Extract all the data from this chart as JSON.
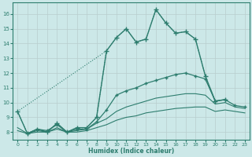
{
  "bg_color": "#cce8e8",
  "grid_color": "#c8dada",
  "line_color": "#2d7d6e",
  "xlabel": "Humidex (Indice chaleur)",
  "xlim": [
    -0.5,
    23.5
  ],
  "ylim": [
    7.5,
    16.8
  ],
  "yticks": [
    8,
    9,
    10,
    11,
    12,
    13,
    14,
    15,
    16
  ],
  "xticks": [
    0,
    1,
    2,
    3,
    4,
    5,
    6,
    7,
    8,
    9,
    10,
    11,
    12,
    13,
    14,
    15,
    16,
    17,
    18,
    19,
    20,
    21,
    22,
    23
  ],
  "lines": [
    {
      "x": [
        0,
        1,
        2,
        3,
        4,
        5,
        6,
        7,
        8,
        9,
        10,
        11,
        12,
        13,
        14,
        15,
        16,
        17,
        18,
        19,
        20,
        21
      ],
      "y": [
        9.4,
        7.9,
        8.2,
        8.0,
        8.6,
        8.0,
        8.3,
        8.3,
        9.0,
        13.5,
        14.4,
        15.0,
        14.1,
        14.3,
        16.3,
        15.4,
        14.7,
        14.8,
        14.3,
        11.8,
        10.1,
        10.2
      ],
      "style": "-",
      "marker": "+",
      "markersize": 4,
      "linewidth": 1.0
    },
    {
      "x": [
        0,
        1,
        2,
        3,
        4,
        5,
        6,
        7,
        8,
        9,
        10,
        11,
        12,
        13,
        14,
        15,
        16,
        17,
        18,
        19,
        20,
        21
      ],
      "y": [
        9.4,
        7.9,
        8.2,
        8.0,
        8.6,
        8.0,
        8.3,
        8.3,
        9.0,
        13.5,
        14.4,
        15.0,
        14.1,
        14.3,
        16.3,
        15.4,
        14.7,
        14.8,
        14.3,
        11.8,
        10.1,
        10.2
      ],
      "style": ":",
      "marker": "",
      "markersize": 0,
      "linewidth": 0.8
    },
    {
      "x": [
        1,
        2,
        3,
        4,
        5,
        6,
        7,
        8,
        9,
        10,
        11,
        12,
        13,
        14,
        15,
        16,
        17,
        18,
        19,
        20,
        21,
        22,
        23
      ],
      "y": [
        7.9,
        8.2,
        8.1,
        8.5,
        8.0,
        8.2,
        8.2,
        8.7,
        9.5,
        10.5,
        10.8,
        11.0,
        11.3,
        11.5,
        11.7,
        11.9,
        12.0,
        11.8,
        11.6,
        10.1,
        10.2,
        9.8,
        9.7
      ],
      "style": "-",
      "marker": "+",
      "markersize": 3,
      "linewidth": 0.9
    },
    {
      "x": [
        0,
        1,
        2,
        3,
        4,
        5,
        6,
        7,
        8,
        9,
        10,
        11,
        12,
        13,
        14,
        15,
        16,
        17,
        18,
        19,
        20,
        21,
        22,
        23
      ],
      "y": [
        8.3,
        7.9,
        8.1,
        8.0,
        8.3,
        8.0,
        8.1,
        8.2,
        8.6,
        8.9,
        9.4,
        9.7,
        9.9,
        10.1,
        10.3,
        10.4,
        10.5,
        10.6,
        10.6,
        10.5,
        9.9,
        10.0,
        9.7,
        9.6
      ],
      "style": "-",
      "marker": "",
      "markersize": 0,
      "linewidth": 0.8
    },
    {
      "x": [
        0,
        1,
        2,
        3,
        4,
        5,
        6,
        7,
        8,
        9,
        10,
        11,
        12,
        13,
        14,
        15,
        16,
        17,
        18,
        19,
        20,
        21,
        22,
        23
      ],
      "y": [
        8.1,
        7.9,
        8.0,
        8.0,
        8.2,
        8.0,
        8.0,
        8.1,
        8.3,
        8.5,
        8.8,
        9.0,
        9.1,
        9.3,
        9.4,
        9.5,
        9.6,
        9.65,
        9.7,
        9.7,
        9.4,
        9.5,
        9.4,
        9.3
      ],
      "style": "-",
      "marker": "",
      "markersize": 0,
      "linewidth": 0.8
    }
  ]
}
